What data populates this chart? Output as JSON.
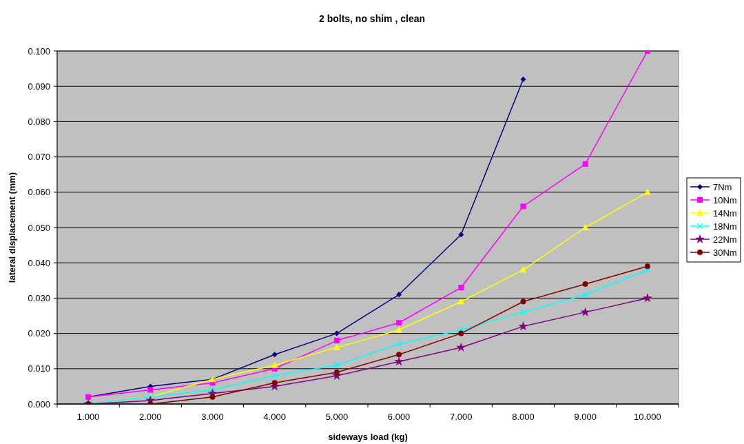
{
  "chart_data": {
    "type": "line",
    "title": "2 bolts, no shim , clean",
    "xlabel": "sideways load (kg)",
    "ylabel": "lateral displacement (mm)",
    "categories": [
      "1.000",
      "2.000",
      "3.000",
      "4.000",
      "5.000",
      "6.000",
      "7.000",
      "8.000",
      "9.000",
      "10.000"
    ],
    "ylim": [
      0,
      0.1
    ],
    "yticks": [
      {
        "value": 0,
        "label": "0.000"
      },
      {
        "value": 0.01,
        "label": "0.010"
      },
      {
        "value": 0.02,
        "label": "0.020"
      },
      {
        "value": 0.03,
        "label": "0.030"
      },
      {
        "value": 0.04,
        "label": "0.040"
      },
      {
        "value": 0.05,
        "label": "0.050"
      },
      {
        "value": 0.06,
        "label": "0.060"
      },
      {
        "value": 0.07,
        "label": "0.070"
      },
      {
        "value": 0.08,
        "label": "0.080"
      },
      {
        "value": 0.09,
        "label": "0.090"
      },
      {
        "value": 0.1,
        "label": "0.100"
      }
    ],
    "grid": "y",
    "legend": "right",
    "series": [
      {
        "name": "7Nm",
        "color": "#000080",
        "marker": "diamond",
        "values": [
          0.002,
          0.005,
          0.007,
          0.014,
          0.02,
          0.031,
          0.048,
          0.092,
          null,
          null
        ]
      },
      {
        "name": "10Nm",
        "color": "#ff00ff",
        "marker": "square",
        "values": [
          0.002,
          0.004,
          0.006,
          0.01,
          0.018,
          0.023,
          0.033,
          0.056,
          0.068,
          0.1
        ]
      },
      {
        "name": "14Nm",
        "color": "#ffff00",
        "marker": "triangle",
        "values": [
          0.0,
          0.002,
          0.007,
          0.011,
          0.016,
          0.021,
          0.029,
          0.038,
          0.05,
          0.06
        ]
      },
      {
        "name": "18Nm",
        "color": "#00ffff",
        "marker": "cross",
        "values": [
          0.0,
          0.002,
          0.004,
          0.008,
          0.011,
          0.017,
          0.021,
          0.026,
          0.031,
          0.038
        ]
      },
      {
        "name": "22Nm",
        "color": "#800080",
        "marker": "star",
        "values": [
          0.0,
          0.001,
          0.003,
          0.005,
          0.008,
          0.012,
          0.016,
          0.022,
          0.026,
          0.03
        ]
      },
      {
        "name": "30Nm",
        "color": "#800000",
        "marker": "circle",
        "values": [
          0.0,
          0.0,
          0.002,
          0.006,
          0.009,
          0.014,
          0.02,
          0.029,
          0.034,
          0.039
        ]
      }
    ]
  }
}
